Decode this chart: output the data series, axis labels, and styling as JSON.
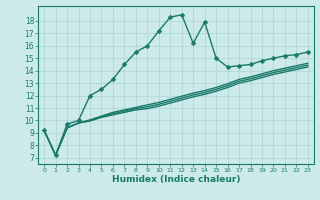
{
  "xlabel": "Humidex (Indice chaleur)",
  "bg_color": "#cceaea",
  "line_color": "#1a7a6a",
  "xlim": [
    -0.5,
    23.5
  ],
  "ylim": [
    6.5,
    19.2
  ],
  "yticks": [
    7,
    8,
    9,
    10,
    11,
    12,
    13,
    14,
    15,
    16,
    17,
    18
  ],
  "xticks": [
    0,
    1,
    2,
    3,
    4,
    5,
    6,
    7,
    8,
    9,
    10,
    11,
    12,
    13,
    14,
    15,
    16,
    17,
    18,
    19,
    20,
    21,
    22,
    23
  ],
  "main_x": [
    0,
    1,
    2,
    3,
    4,
    5,
    6,
    7,
    8,
    9,
    10,
    11,
    12,
    13,
    14,
    15,
    16,
    17,
    18,
    19,
    20,
    21,
    22,
    23
  ],
  "main_y": [
    9.2,
    7.2,
    9.7,
    10.0,
    12.0,
    12.5,
    13.3,
    14.5,
    15.5,
    16.0,
    17.2,
    18.3,
    18.5,
    16.2,
    17.9,
    15.0,
    14.3,
    14.4,
    14.5,
    14.8,
    15.0,
    15.2,
    15.3,
    15.5
  ],
  "line2_y": [
    9.2,
    7.2,
    9.4,
    9.8,
    10.05,
    10.35,
    10.65,
    10.85,
    11.05,
    11.25,
    11.45,
    11.7,
    11.95,
    12.2,
    12.4,
    12.65,
    12.95,
    13.3,
    13.5,
    13.75,
    14.0,
    14.2,
    14.4,
    14.6
  ],
  "line3_y": [
    9.2,
    7.2,
    9.4,
    9.8,
    10.0,
    10.3,
    10.55,
    10.75,
    10.95,
    11.1,
    11.3,
    11.55,
    11.8,
    12.05,
    12.25,
    12.5,
    12.8,
    13.15,
    13.35,
    13.6,
    13.85,
    14.05,
    14.25,
    14.45
  ],
  "line4_y": [
    9.2,
    7.2,
    9.4,
    9.8,
    9.95,
    10.25,
    10.45,
    10.65,
    10.85,
    10.95,
    11.15,
    11.4,
    11.65,
    11.9,
    12.1,
    12.35,
    12.65,
    13.0,
    13.2,
    13.45,
    13.7,
    13.9,
    14.1,
    14.3
  ],
  "grid_color": "#aad4d4",
  "markersize": 2.5,
  "linewidth": 1.0
}
